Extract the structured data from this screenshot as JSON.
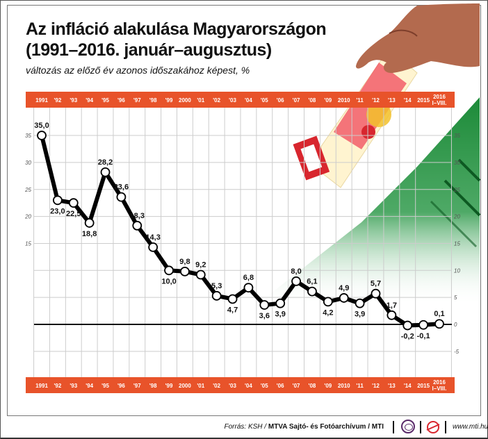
{
  "header": {
    "title_line1": "Az infláció alakulása Magyarországon",
    "title_line2": "(1991–2016. január–augusztus)",
    "subtitle": "változás az előző év azonos időszakához képest, %"
  },
  "footer": {
    "source_prefix": "Forrás: KSH /",
    "source_bold": "MTVA Sajtó- és Fotóarchívum / MTI",
    "website": "www.mti.hu"
  },
  "colors": {
    "accent_orange": "#e8532a",
    "line": "#000000",
    "grid": "#cccccc",
    "photo_green": "#1f8a3a"
  },
  "chart_data": {
    "type": "line",
    "title": "Az infláció alakulása Magyarországon (1991–2016. január–augusztus)",
    "subtitle": "változás az előző év azonos időszakához képest, %",
    "xlabel": "",
    "ylabel": "%",
    "categories": [
      "1991",
      "'92",
      "'93",
      "'94",
      "'95",
      "'96",
      "'97",
      "'98",
      "'99",
      "2000",
      "'01",
      "'02",
      "'03",
      "'04",
      "'05",
      "'06",
      "'07",
      "'08",
      "'09",
      "2010",
      "'11",
      "'12",
      "'13",
      "'14",
      "2015",
      "2016 I–VIII."
    ],
    "values": [
      35.0,
      23.0,
      22.5,
      18.8,
      28.2,
      23.6,
      18.3,
      14.3,
      10.0,
      9.8,
      9.2,
      5.3,
      4.7,
      6.8,
      3.6,
      3.9,
      8.0,
      6.1,
      4.2,
      4.9,
      3.9,
      5.7,
      1.7,
      -0.2,
      -0.1,
      0.1
    ],
    "value_labels": [
      "35,0",
      "23,0",
      "22,5",
      "18,8",
      "28,2",
      "23,6",
      "18,3",
      "14,3",
      "10,0",
      "9,8",
      "9,2",
      "5,3",
      "4,7",
      "6,8",
      "3,6",
      "3,9",
      "8,0",
      "6,1",
      "4,2",
      "4,9",
      "3,9",
      "5,7",
      "1,7",
      "-0,2",
      "-0,1",
      "0,1"
    ],
    "label_position": [
      "above",
      "below",
      "below",
      "below",
      "above",
      "above",
      "above",
      "above",
      "below",
      "above",
      "above",
      "above",
      "below",
      "above",
      "below",
      "below",
      "above",
      "above",
      "below",
      "above",
      "below",
      "above",
      "above",
      "below",
      "below",
      "above"
    ],
    "y_ticks": [
      35,
      30,
      25,
      20,
      15,
      10,
      5,
      0,
      -5
    ],
    "left_y_ticks": [
      35,
      30,
      25,
      20,
      15
    ],
    "ylim": [
      -5,
      35
    ],
    "grid": true,
    "legend": "none",
    "x_axis_position": "top and bottom orange bands",
    "y_axis_position": "left (35–15) and right (35 to -5)"
  }
}
